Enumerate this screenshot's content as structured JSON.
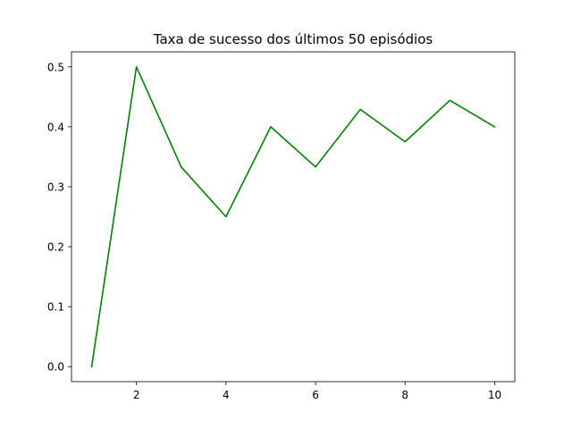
{
  "chart_data": {
    "type": "line",
    "title": "Taxa de sucesso dos últimos 50 episódios",
    "xlabel": "",
    "ylabel": "",
    "x": [
      1,
      2,
      3,
      4,
      5,
      6,
      7,
      8,
      9,
      10
    ],
    "series": [
      {
        "values": [
          0.0,
          0.5,
          0.333,
          0.25,
          0.4,
          0.333,
          0.429,
          0.375,
          0.444,
          0.4
        ],
        "color": "#008000"
      }
    ],
    "xlim": [
      0.55,
      10.45
    ],
    "ylim": [
      -0.025,
      0.525
    ],
    "xticks": [
      2,
      4,
      6,
      8,
      10
    ],
    "xtick_labels": [
      "2",
      "4",
      "6",
      "8",
      "10"
    ],
    "yticks": [
      0.0,
      0.1,
      0.2,
      0.3,
      0.4,
      0.5
    ],
    "ytick_labels": [
      "0.0",
      "0.1",
      "0.2",
      "0.3",
      "0.4",
      "0.5"
    ],
    "grid": false,
    "legend": false
  }
}
